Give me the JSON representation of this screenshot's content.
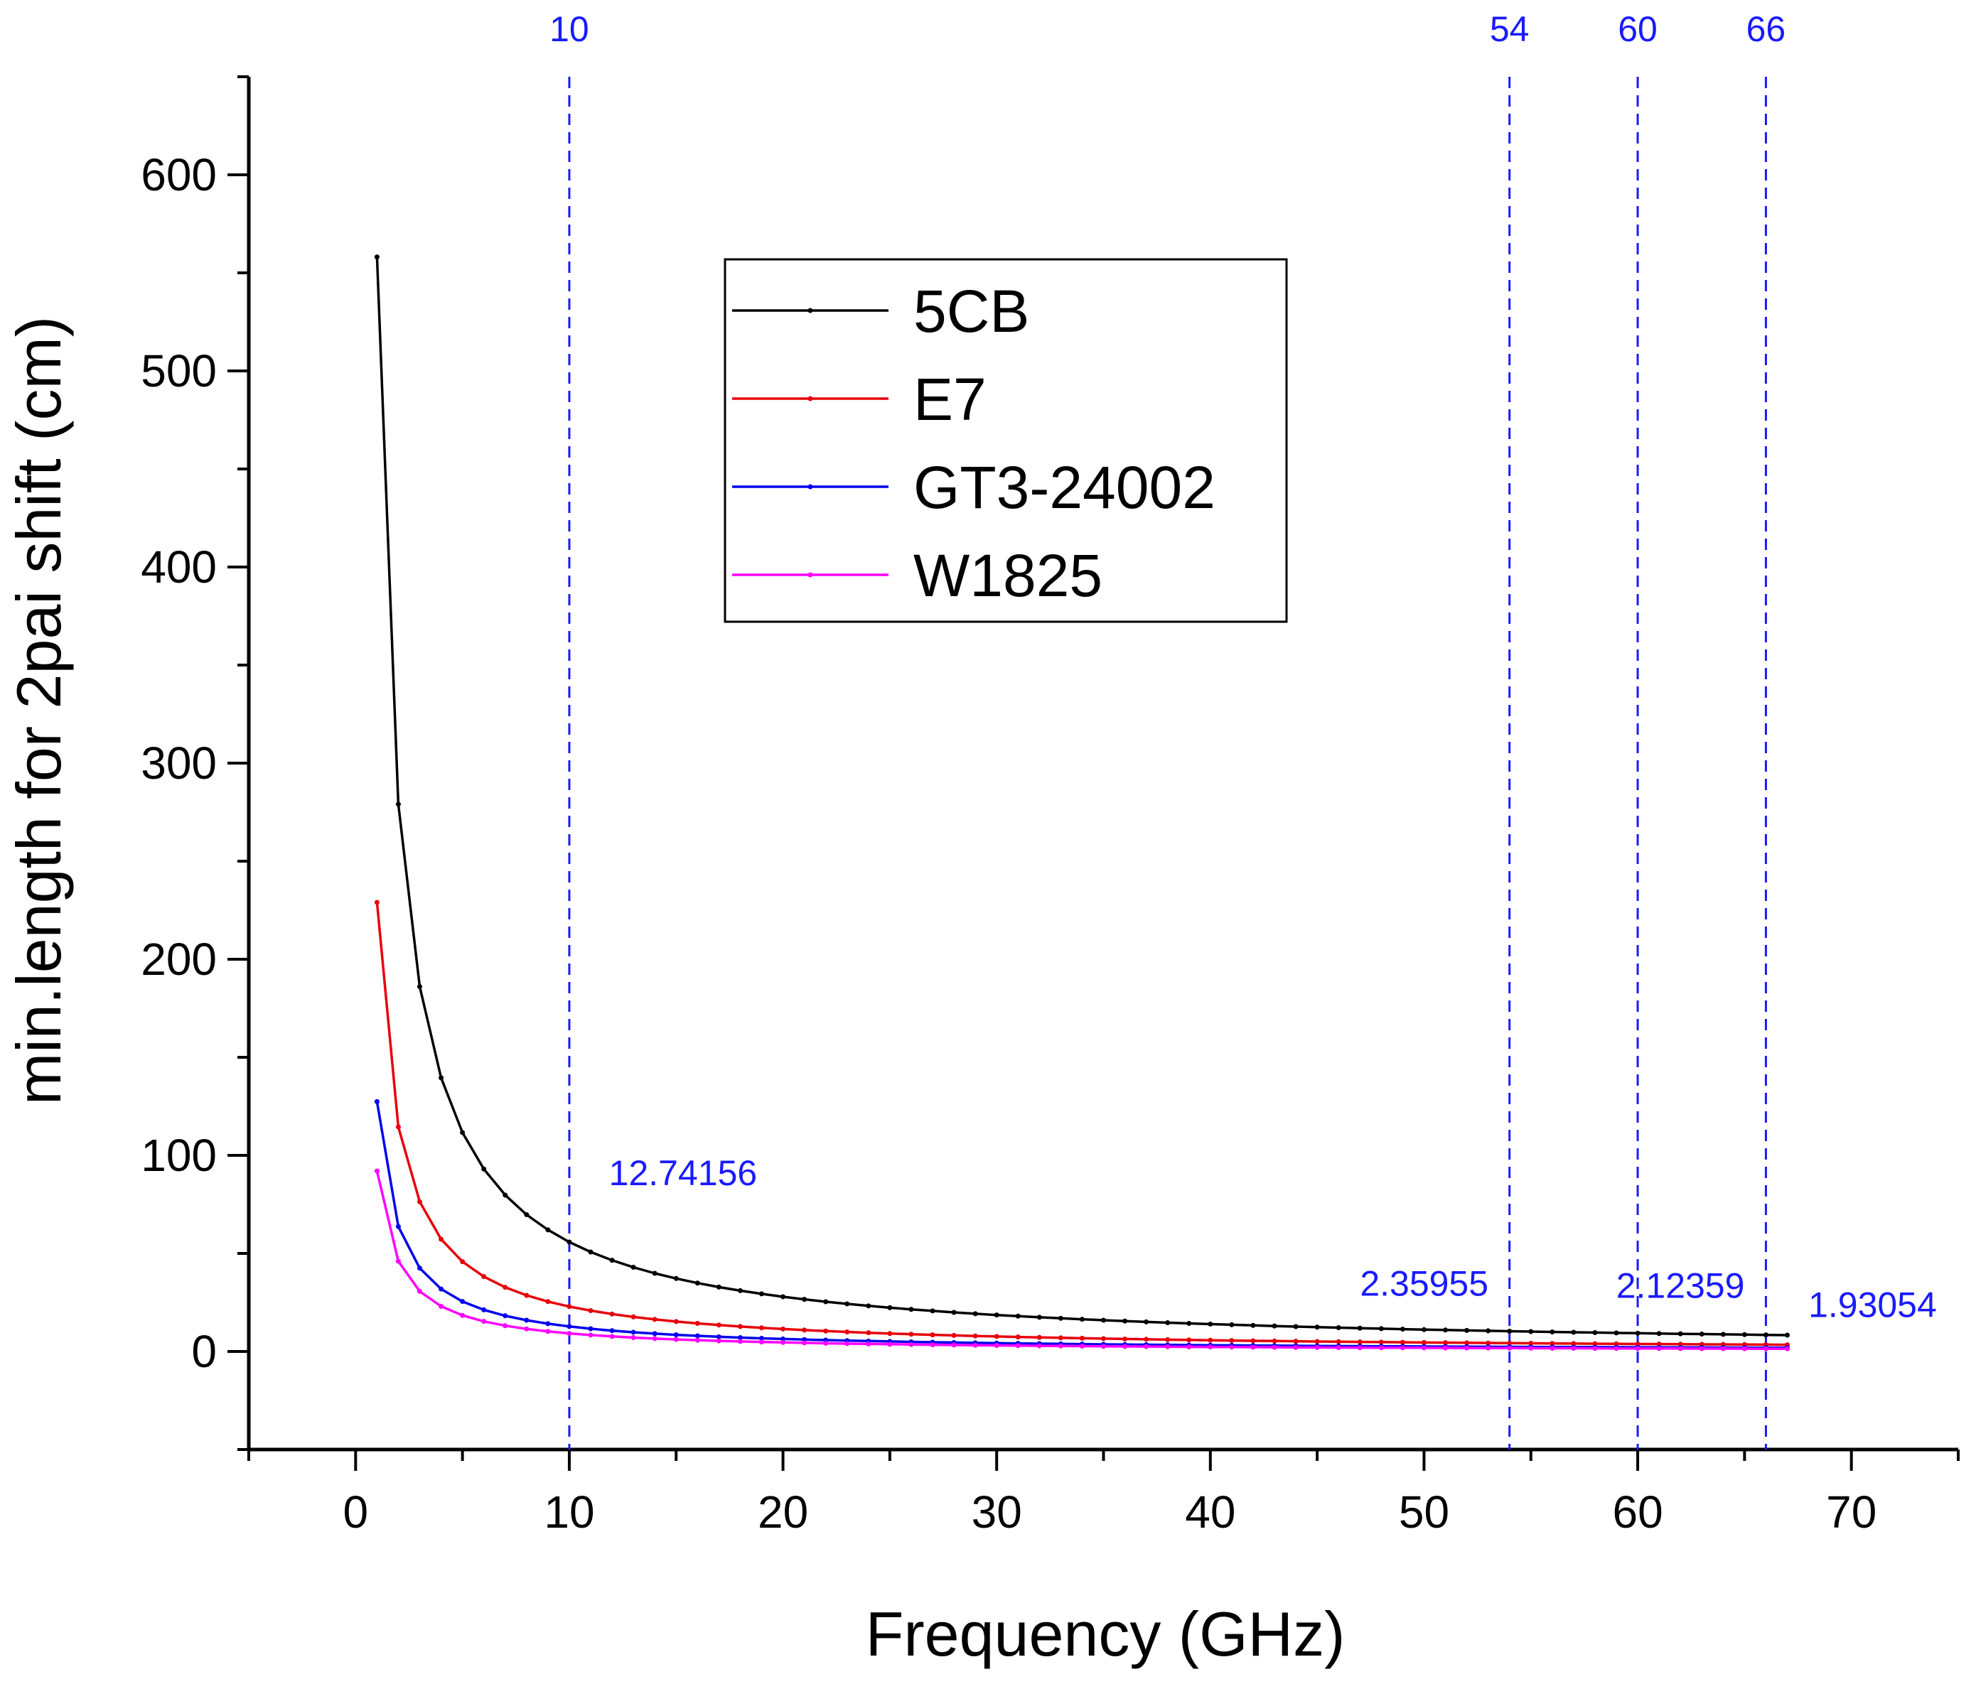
{
  "chart_data": {
    "type": "line",
    "title": "",
    "xlabel": "Frequency (GHz)",
    "ylabel": "min.length for 2pai shift (cm)",
    "xlim": [
      -5,
      75
    ],
    "ylim": [
      -50,
      650
    ],
    "xticks": [
      0,
      10,
      20,
      30,
      40,
      50,
      60,
      70
    ],
    "yticks": [
      0,
      100,
      200,
      300,
      400,
      500,
      600
    ],
    "x_minor_step": 5,
    "y_minor_step": 50,
    "grid": false,
    "legend_position": "top-center",
    "frequency_range": {
      "start": 1,
      "end": 67,
      "step": 1
    },
    "series": [
      {
        "name": "5CB",
        "color": "#000000",
        "k": 558.1,
        "note": "length = k / frequency"
      },
      {
        "name": "E7",
        "color": "#e8000b",
        "k": 229.0,
        "note": "length = k / frequency"
      },
      {
        "name": "GT3-24002",
        "color": "#0000ee",
        "k": 127.4,
        "note": "length = k / frequency"
      },
      {
        "name": "W1825",
        "color": "#ff00ff",
        "k": 92.0,
        "note": "length = k / frequency"
      }
    ],
    "reference_lines": [
      {
        "x": 10,
        "label": "10",
        "value_text": "12.74156"
      },
      {
        "x": 54,
        "label": "54",
        "value_text": "2.35955"
      },
      {
        "x": 60,
        "label": "60",
        "value_text": "2.12359"
      },
      {
        "x": 66,
        "label": "66",
        "value_text": "1.93054"
      }
    ],
    "reference_color": "#1a1aff"
  }
}
